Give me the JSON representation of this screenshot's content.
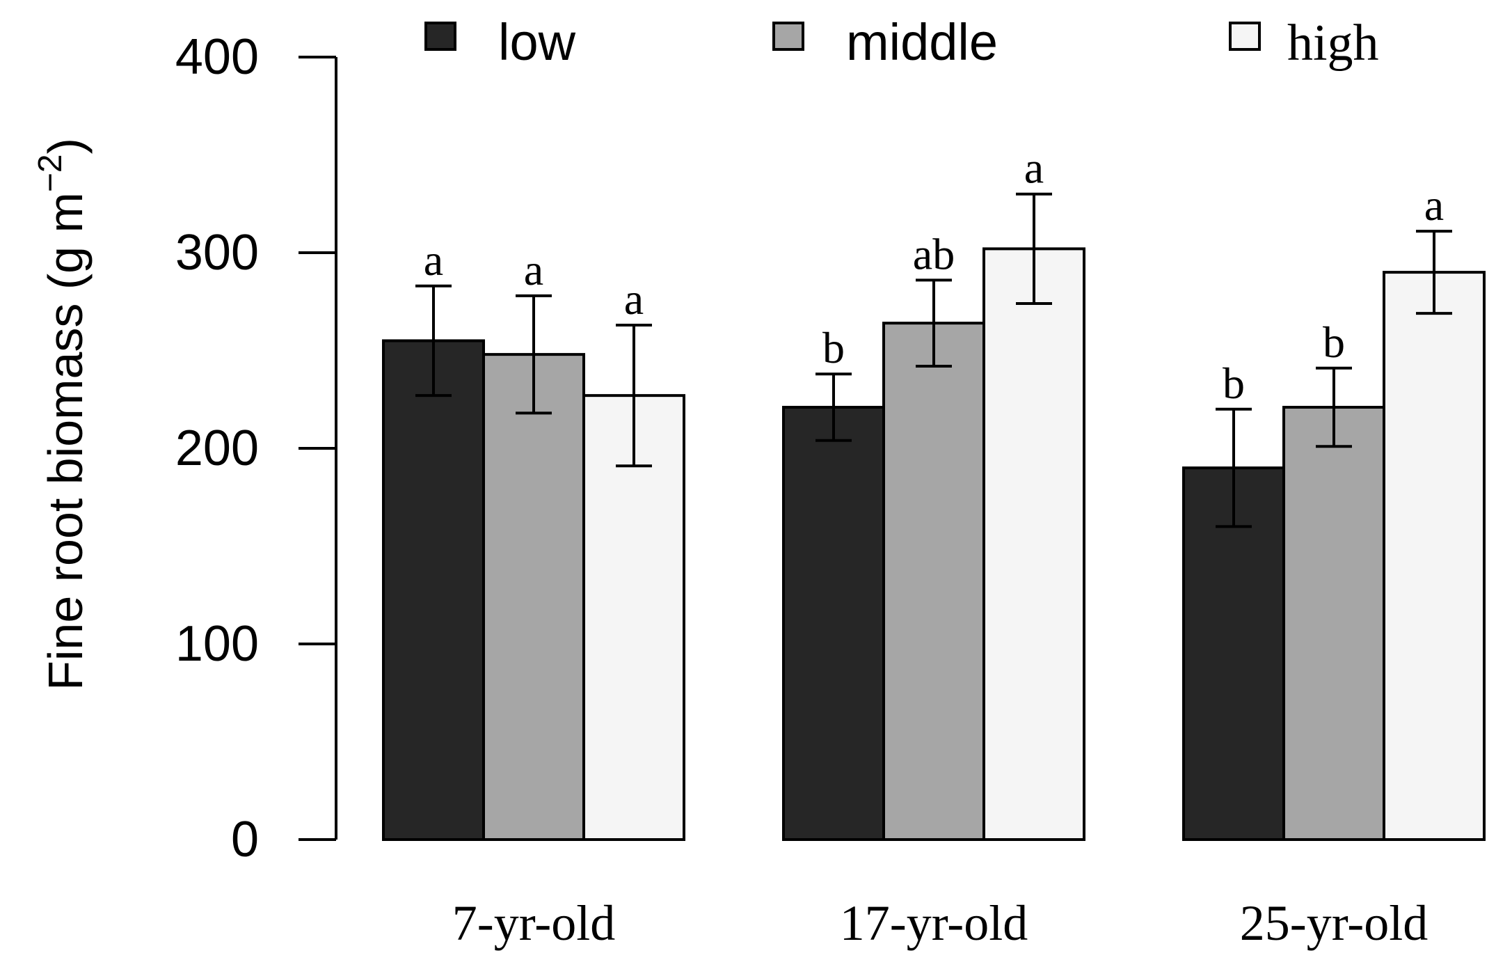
{
  "chart_data": {
    "type": "bar",
    "ylabel": "Fine root biomass (g m",
    "ylabel_superscript": "−2",
    "ylabel_close": ")",
    "ylim": [
      0,
      400
    ],
    "yticks": [
      "0",
      "100",
      "200",
      "300",
      "400"
    ],
    "categories": [
      "7-yr-old",
      "17-yr-old",
      "25-yr-old"
    ],
    "legend_position": "top",
    "grid": false,
    "series": [
      {
        "name": "low",
        "color": "#262626",
        "values": [
          255,
          221,
          190
        ],
        "errors": [
          28,
          17,
          30
        ],
        "labels": [
          "a",
          "b",
          "b"
        ]
      },
      {
        "name": "middle",
        "color": "#a6a6a6",
        "values": [
          248,
          264,
          221
        ],
        "errors": [
          30,
          22,
          20
        ],
        "labels": [
          "a",
          "ab",
          "b"
        ]
      },
      {
        "name": "high",
        "color": "#f5f5f5",
        "values": [
          227,
          302,
          290
        ],
        "errors": [
          36,
          28,
          21
        ],
        "labels": [
          "a",
          "a",
          "a"
        ]
      }
    ]
  }
}
